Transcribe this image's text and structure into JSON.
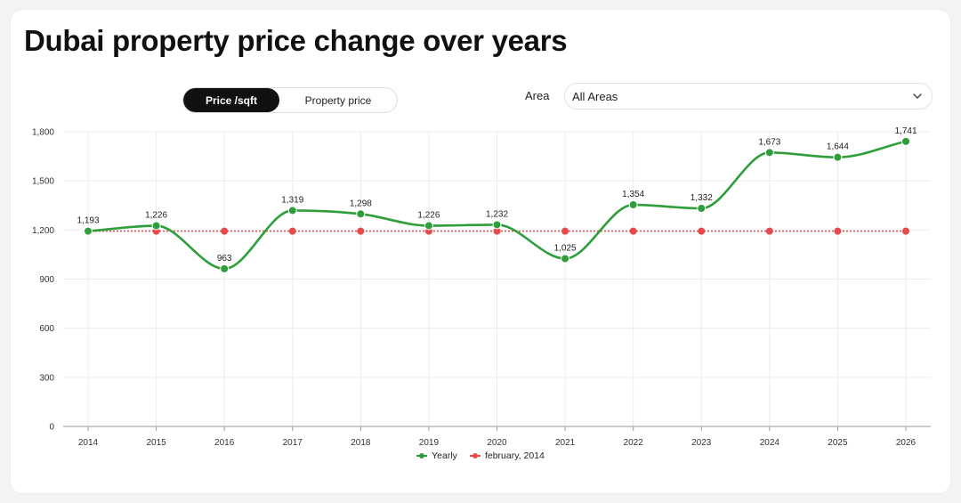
{
  "header": {
    "title": "Dubai property price change over years"
  },
  "toggle": {
    "active_label": "Price /sqft",
    "inactive_label": "Property price"
  },
  "filter": {
    "area_label": "Area",
    "area_value": "All Areas"
  },
  "colors": {
    "yearly": "#2e9e3a",
    "baseline": "#e64a4a",
    "grid": "#ececec",
    "axis": "#9a9a9a"
  },
  "chart_data": {
    "type": "line",
    "title": "Dubai property price change over years",
    "xlabel": "",
    "ylabel": "",
    "categories": [
      "2014",
      "2015",
      "2016",
      "2017",
      "2018",
      "2019",
      "2020",
      "2021",
      "2022",
      "2023",
      "2024",
      "2025",
      "2026"
    ],
    "ylim": [
      0,
      1800
    ],
    "yticks": [
      0,
      300,
      600,
      900,
      1200,
      1500,
      1800
    ],
    "ytick_labels": [
      "0",
      "300",
      "600",
      "900",
      "1,200",
      "1,500",
      "1,800"
    ],
    "series": [
      {
        "name": "Yearly",
        "values": [
          1193,
          1226,
          963,
          1319,
          1298,
          1226,
          1232,
          1025,
          1354,
          1332,
          1673,
          1644,
          1741
        ],
        "labels": [
          "1,193",
          "1,226",
          "963",
          "1,319",
          "1,298",
          "1,226",
          "1,232",
          "1,025",
          "1,354",
          "1,332",
          "1,673",
          "1,644",
          "1,741"
        ],
        "style": "smooth"
      },
      {
        "name": "february, 2014",
        "values": [
          1193,
          1193,
          1193,
          1193,
          1193,
          1193,
          1193,
          1193,
          1193,
          1193,
          1193,
          1193,
          1193
        ],
        "style": "dotted"
      }
    ],
    "legend": [
      "Yearly",
      "february, 2014"
    ],
    "legend_position": "bottom-center",
    "grid": true
  }
}
